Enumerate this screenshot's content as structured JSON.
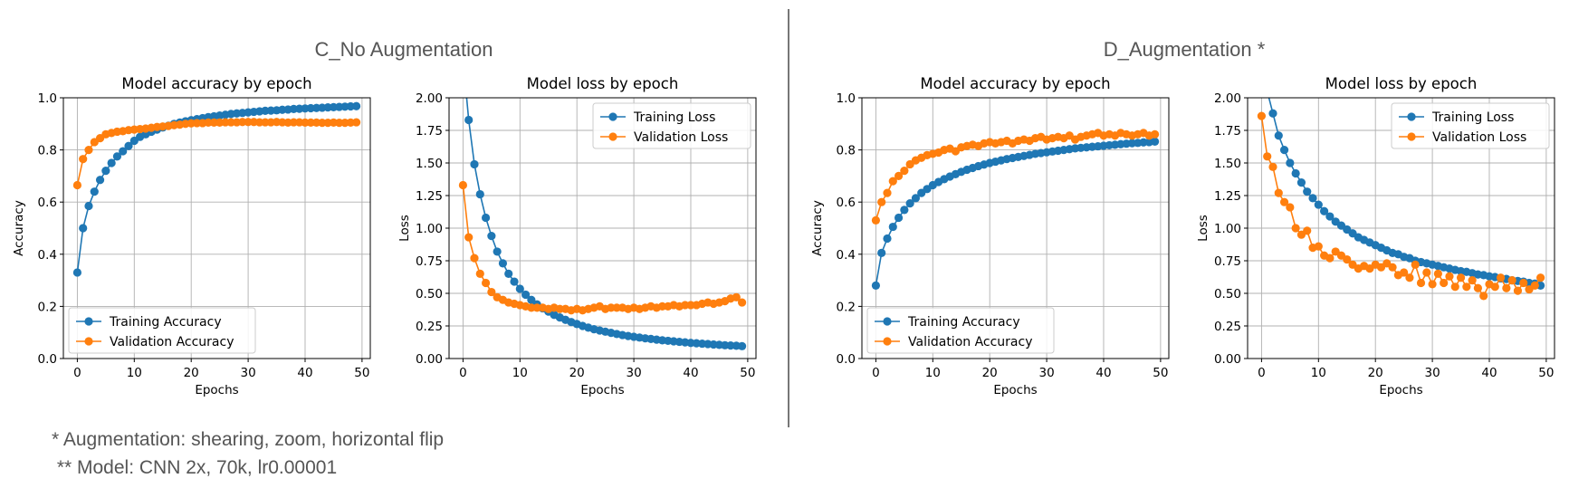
{
  "sections": [
    {
      "title": "C_No Augmentation"
    },
    {
      "title": "D_Augmentation *"
    }
  ],
  "footnotes": {
    "augmentation": "* Augmentation: shearing, zoom, horizontal flip",
    "model": " ** Model: CNN 2x, 70k, lr0.00001"
  },
  "colors": {
    "training": "#1f77b4",
    "validation": "#ff7f0e",
    "grid": "#b0b0b0",
    "divider": "#555555"
  },
  "chart_data": [
    {
      "type": "line",
      "section": "C_No Augmentation",
      "title": "Model accuracy by epoch",
      "xlabel": "Epochs",
      "ylabel": "Accuracy",
      "xlim": [
        -2.45,
        51.45
      ],
      "ylim": [
        0.0,
        1.0
      ],
      "xticks": [
        0,
        10,
        20,
        30,
        40,
        50
      ],
      "yticks": [
        0.0,
        0.2,
        0.4,
        0.6,
        0.8,
        1.0
      ],
      "ytick_labels": [
        "0.0",
        "0.2",
        "0.4",
        "0.6",
        "0.8",
        "1.0"
      ],
      "grid": true,
      "legend": "lower-left",
      "x": [
        0,
        1,
        2,
        3,
        4,
        5,
        6,
        7,
        8,
        9,
        10,
        11,
        12,
        13,
        14,
        15,
        16,
        17,
        18,
        19,
        20,
        21,
        22,
        23,
        24,
        25,
        26,
        27,
        28,
        29,
        30,
        31,
        32,
        33,
        34,
        35,
        36,
        37,
        38,
        39,
        40,
        41,
        42,
        43,
        44,
        45,
        46,
        47,
        48,
        49
      ],
      "series": [
        {
          "name": "Training Accuracy",
          "color": "#1f77b4",
          "values": [
            0.33,
            0.5,
            0.585,
            0.64,
            0.685,
            0.72,
            0.75,
            0.775,
            0.795,
            0.815,
            0.835,
            0.85,
            0.86,
            0.87,
            0.878,
            0.886,
            0.893,
            0.9,
            0.905,
            0.91,
            0.914,
            0.918,
            0.922,
            0.926,
            0.929,
            0.932,
            0.935,
            0.938,
            0.94,
            0.942,
            0.944,
            0.946,
            0.948,
            0.95,
            0.951,
            0.952,
            0.954,
            0.955,
            0.957,
            0.958,
            0.959,
            0.96,
            0.961,
            0.962,
            0.963,
            0.964,
            0.965,
            0.966,
            0.967,
            0.968
          ]
        },
        {
          "name": "Validation Accuracy",
          "color": "#ff7f0e",
          "values": [
            0.665,
            0.765,
            0.8,
            0.83,
            0.845,
            0.86,
            0.865,
            0.87,
            0.872,
            0.876,
            0.878,
            0.88,
            0.882,
            0.885,
            0.888,
            0.89,
            0.892,
            0.895,
            0.897,
            0.9,
            0.902,
            0.903,
            0.903,
            0.905,
            0.905,
            0.905,
            0.906,
            0.906,
            0.906,
            0.907,
            0.907,
            0.907,
            0.906,
            0.906,
            0.906,
            0.907,
            0.906,
            0.905,
            0.906,
            0.906,
            0.905,
            0.905,
            0.905,
            0.904,
            0.904,
            0.905,
            0.904,
            0.904,
            0.905,
            0.906
          ]
        }
      ]
    },
    {
      "type": "line",
      "section": "C_No Augmentation",
      "title": "Model loss by epoch",
      "xlabel": "Epochs",
      "ylabel": "Loss",
      "xlim": [
        -2.45,
        51.45
      ],
      "ylim": [
        0.0,
        2.0
      ],
      "xticks": [
        0,
        10,
        20,
        30,
        40,
        50
      ],
      "yticks": [
        0.0,
        0.25,
        0.5,
        0.75,
        1.0,
        1.25,
        1.5,
        1.75,
        2.0
      ],
      "ytick_labels": [
        "0.00",
        "0.25",
        "0.50",
        "0.75",
        "1.00",
        "1.25",
        "1.50",
        "1.75",
        "2.00"
      ],
      "grid": true,
      "legend": "upper-right",
      "x": [
        0,
        1,
        2,
        3,
        4,
        5,
        6,
        7,
        8,
        9,
        10,
        11,
        12,
        13,
        14,
        15,
        16,
        17,
        18,
        19,
        20,
        21,
        22,
        23,
        24,
        25,
        26,
        27,
        28,
        29,
        30,
        31,
        32,
        33,
        34,
        35,
        36,
        37,
        38,
        39,
        40,
        41,
        42,
        43,
        44,
        45,
        46,
        47,
        48,
        49
      ],
      "series": [
        {
          "name": "Training Loss",
          "color": "#1f77b4",
          "values": [
            2.3,
            1.83,
            1.49,
            1.26,
            1.08,
            0.94,
            0.82,
            0.73,
            0.65,
            0.59,
            0.535,
            0.49,
            0.45,
            0.415,
            0.385,
            0.36,
            0.335,
            0.315,
            0.297,
            0.28,
            0.265,
            0.25,
            0.237,
            0.225,
            0.215,
            0.206,
            0.197,
            0.188,
            0.18,
            0.173,
            0.167,
            0.161,
            0.155,
            0.15,
            0.145,
            0.14,
            0.136,
            0.132,
            0.128,
            0.124,
            0.12,
            0.117,
            0.114,
            0.111,
            0.108,
            0.105,
            0.102,
            0.1,
            0.098,
            0.095
          ]
        },
        {
          "name": "Validation Loss",
          "color": "#ff7f0e",
          "values": [
            1.33,
            0.93,
            0.77,
            0.65,
            0.58,
            0.51,
            0.47,
            0.45,
            0.43,
            0.42,
            0.41,
            0.4,
            0.39,
            0.39,
            0.39,
            0.38,
            0.39,
            0.38,
            0.38,
            0.37,
            0.38,
            0.37,
            0.38,
            0.39,
            0.4,
            0.38,
            0.39,
            0.39,
            0.39,
            0.38,
            0.39,
            0.38,
            0.39,
            0.4,
            0.39,
            0.4,
            0.4,
            0.41,
            0.4,
            0.41,
            0.41,
            0.41,
            0.42,
            0.43,
            0.42,
            0.43,
            0.44,
            0.46,
            0.47,
            0.43
          ]
        }
      ]
    },
    {
      "type": "line",
      "section": "D_Augmentation *",
      "title": "Model accuracy by epoch",
      "xlabel": "Epochs",
      "ylabel": "Accuracy",
      "xlim": [
        -2.45,
        51.45
      ],
      "ylim": [
        0.0,
        1.0
      ],
      "xticks": [
        0,
        10,
        20,
        30,
        40,
        50
      ],
      "yticks": [
        0.0,
        0.2,
        0.4,
        0.6,
        0.8,
        1.0
      ],
      "ytick_labels": [
        "0.0",
        "0.2",
        "0.4",
        "0.6",
        "0.8",
        "1.0"
      ],
      "grid": true,
      "legend": "lower-left",
      "x": [
        0,
        1,
        2,
        3,
        4,
        5,
        6,
        7,
        8,
        9,
        10,
        11,
        12,
        13,
        14,
        15,
        16,
        17,
        18,
        19,
        20,
        21,
        22,
        23,
        24,
        25,
        26,
        27,
        28,
        29,
        30,
        31,
        32,
        33,
        34,
        35,
        36,
        37,
        38,
        39,
        40,
        41,
        42,
        43,
        44,
        45,
        46,
        47,
        48,
        49
      ],
      "series": [
        {
          "name": "Training Accuracy",
          "color": "#1f77b4",
          "values": [
            0.28,
            0.405,
            0.46,
            0.505,
            0.54,
            0.57,
            0.595,
            0.615,
            0.635,
            0.65,
            0.665,
            0.677,
            0.688,
            0.698,
            0.707,
            0.716,
            0.724,
            0.731,
            0.738,
            0.744,
            0.75,
            0.755,
            0.76,
            0.765,
            0.769,
            0.773,
            0.777,
            0.781,
            0.785,
            0.788,
            0.791,
            0.794,
            0.797,
            0.8,
            0.803,
            0.806,
            0.808,
            0.81,
            0.812,
            0.814,
            0.816,
            0.818,
            0.82,
            0.822,
            0.824,
            0.826,
            0.827,
            0.829,
            0.83,
            0.832
          ]
        },
        {
          "name": "Validation Accuracy",
          "color": "#ff7f0e",
          "values": [
            0.53,
            0.6,
            0.635,
            0.68,
            0.7,
            0.72,
            0.745,
            0.76,
            0.77,
            0.78,
            0.785,
            0.79,
            0.8,
            0.805,
            0.795,
            0.81,
            0.815,
            0.82,
            0.815,
            0.825,
            0.83,
            0.825,
            0.83,
            0.835,
            0.825,
            0.835,
            0.84,
            0.835,
            0.845,
            0.85,
            0.84,
            0.845,
            0.85,
            0.845,
            0.855,
            0.84,
            0.85,
            0.855,
            0.86,
            0.865,
            0.855,
            0.86,
            0.855,
            0.865,
            0.86,
            0.855,
            0.86,
            0.865,
            0.855,
            0.86
          ]
        }
      ]
    },
    {
      "type": "line",
      "section": "D_Augmentation *",
      "title": "Model loss by epoch",
      "xlabel": "Epochs",
      "ylabel": "Loss",
      "xlim": [
        -2.45,
        51.45
      ],
      "ylim": [
        0.0,
        2.0
      ],
      "xticks": [
        0,
        10,
        20,
        30,
        40,
        50
      ],
      "yticks": [
        0.0,
        0.25,
        0.5,
        0.75,
        1.0,
        1.25,
        1.5,
        1.75,
        2.0
      ],
      "ytick_labels": [
        "0.00",
        "0.25",
        "0.50",
        "0.75",
        "1.00",
        "1.25",
        "1.50",
        "1.75",
        "2.00"
      ],
      "grid": true,
      "legend": "upper-right",
      "x": [
        0,
        1,
        2,
        3,
        4,
        5,
        6,
        7,
        8,
        9,
        10,
        11,
        12,
        13,
        14,
        15,
        16,
        17,
        18,
        19,
        20,
        21,
        22,
        23,
        24,
        25,
        26,
        27,
        28,
        29,
        30,
        31,
        32,
        33,
        34,
        35,
        36,
        37,
        38,
        39,
        40,
        41,
        42,
        43,
        44,
        45,
        46,
        47,
        48,
        49
      ],
      "series": [
        {
          "name": "Training Loss",
          "color": "#1f77b4",
          "values": [
            2.2,
            2.05,
            1.88,
            1.71,
            1.6,
            1.5,
            1.42,
            1.35,
            1.28,
            1.23,
            1.18,
            1.13,
            1.09,
            1.05,
            1.02,
            0.99,
            0.96,
            0.93,
            0.91,
            0.89,
            0.87,
            0.85,
            0.83,
            0.81,
            0.8,
            0.78,
            0.77,
            0.75,
            0.74,
            0.73,
            0.72,
            0.71,
            0.7,
            0.69,
            0.68,
            0.67,
            0.665,
            0.655,
            0.645,
            0.64,
            0.63,
            0.625,
            0.615,
            0.61,
            0.6,
            0.595,
            0.59,
            0.58,
            0.575,
            0.56
          ]
        },
        {
          "name": "Validation Loss",
          "color": "#ff7f0e",
          "values": [
            1.86,
            1.55,
            1.47,
            1.27,
            1.2,
            1.16,
            1.0,
            0.95,
            0.98,
            0.85,
            0.86,
            0.79,
            0.77,
            0.82,
            0.79,
            0.76,
            0.72,
            0.69,
            0.71,
            0.69,
            0.72,
            0.7,
            0.73,
            0.7,
            0.64,
            0.66,
            0.62,
            0.72,
            0.58,
            0.66,
            0.57,
            0.65,
            0.58,
            0.63,
            0.55,
            0.62,
            0.55,
            0.6,
            0.54,
            0.48,
            0.57,
            0.55,
            0.62,
            0.54,
            0.6,
            0.52,
            0.58,
            0.53,
            0.56,
            0.62
          ]
        }
      ]
    }
  ]
}
